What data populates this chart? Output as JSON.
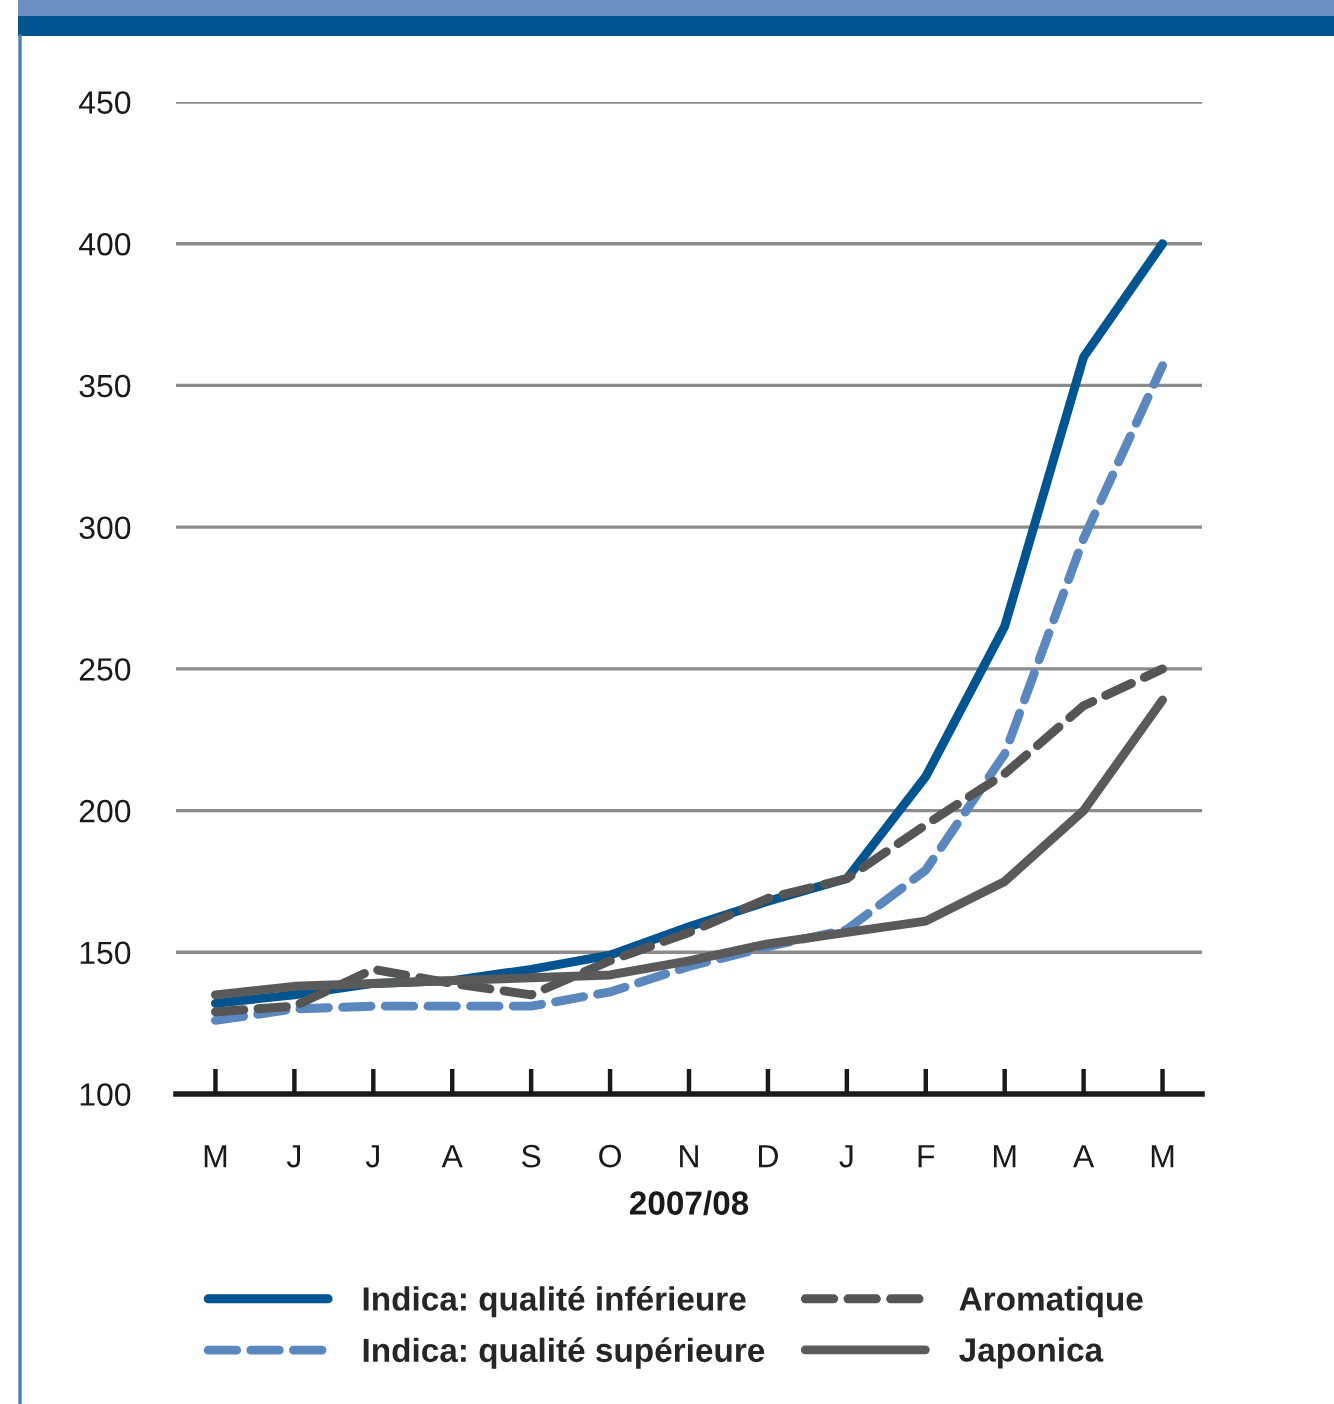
{
  "chart_data": {
    "type": "line",
    "xlabel": "2007/08",
    "categories": [
      "M",
      "J",
      "J",
      "A",
      "S",
      "O",
      "N",
      "D",
      "J",
      "F",
      "M",
      "A",
      "M"
    ],
    "ylim": [
      100,
      450
    ],
    "yticks": [
      100,
      150,
      200,
      250,
      300,
      350,
      400,
      450
    ],
    "grid": "y",
    "legend": "bottom",
    "series": [
      {
        "name": "Indica: qualité inférieure",
        "color": "#00548f",
        "line_style": "solid",
        "values": [
          132,
          135,
          139,
          140,
          144,
          149,
          159,
          168,
          176,
          212,
          265,
          360,
          400
        ]
      },
      {
        "name": "Indica: qualité supérieure",
        "color": "#5b87bf",
        "line_style": "dashed",
        "values": [
          126,
          130,
          131,
          131,
          131,
          136,
          145,
          152,
          158,
          179,
          220,
          296,
          357
        ]
      },
      {
        "name": "Aromatique",
        "color": "#555555",
        "line_style": "dashed",
        "values": [
          129,
          131,
          144,
          139,
          135,
          147,
          157,
          169,
          176,
          195,
          213,
          237,
          250
        ]
      },
      {
        "name": "Japonica",
        "color": "#5a5a5a",
        "line_style": "solid",
        "values": [
          135,
          138,
          139,
          140,
          141,
          142,
          147,
          153,
          157,
          161,
          175,
          200,
          239
        ]
      }
    ]
  }
}
